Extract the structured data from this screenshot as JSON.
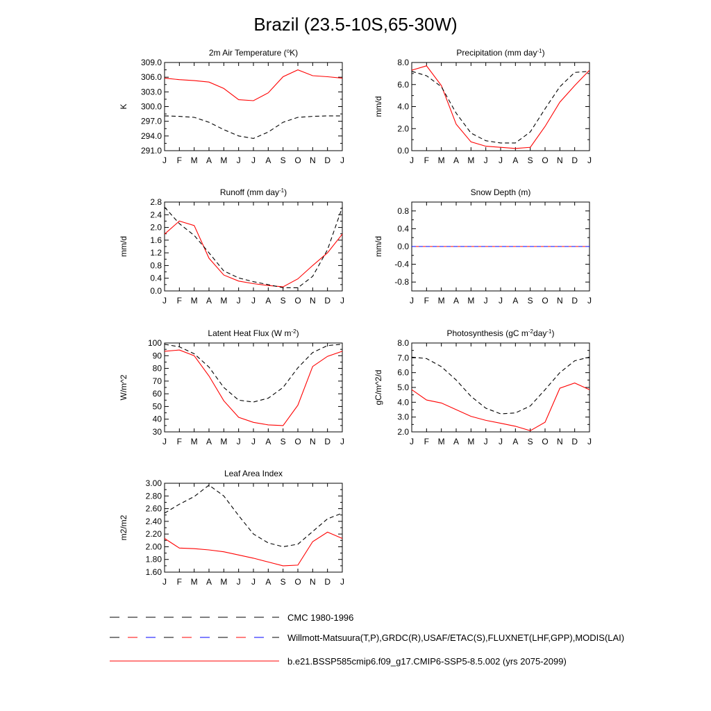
{
  "figure": {
    "title": "Brazil (23.5-10S,65-30W)"
  },
  "legend": [
    {
      "label": "CMC 1980-1996",
      "style": "dashed",
      "colors": [
        "#000000"
      ]
    },
    {
      "label": "Willmott-Matsuura(T,P),GRDC(R),USAF/ETAC(S),FLUXNET(LHF,GPP),MODIS(LAI)",
      "style": "dashed",
      "colors": [
        "#000000",
        "#ff0000",
        "#0000ff"
      ]
    },
    {
      "label": "b.e21.BSSP585cmip6.f09_g17.CMIP6-SSP5-8.5.002 (yrs 2075-2099)",
      "style": "solid",
      "colors": [
        "#ff0000"
      ]
    }
  ],
  "chart_data": [
    {
      "type": "line",
      "title": "2m Air Temperature (°K)",
      "title_parts": [
        {
          "t": "2m Air Temperature ("
        },
        {
          "t": "o",
          "sup": true
        },
        {
          "t": "K)"
        }
      ],
      "xlabel": "",
      "ylabel": "K",
      "x": [
        "J",
        "F",
        "M",
        "A",
        "M",
        "J",
        "J",
        "A",
        "S",
        "O",
        "N",
        "D",
        "J"
      ],
      "ylim": [
        291.0,
        309.0
      ],
      "yticks": [
        291.0,
        294.0,
        297.0,
        300.0,
        303.0,
        306.0,
        309.0
      ],
      "ytick_labels": [
        "291.0",
        "294.0",
        "297.0",
        "300.0",
        "303.0",
        "306.0",
        "309.0"
      ],
      "series": [
        {
          "style": "solid",
          "color": "#ff0000",
          "values": [
            305.8,
            305.5,
            305.3,
            305.0,
            303.7,
            301.4,
            301.2,
            302.8,
            306.1,
            307.5,
            306.3,
            306.1,
            305.8
          ]
        },
        {
          "style": "dashed",
          "color": "#000000",
          "values": [
            298.1,
            298.0,
            297.8,
            296.8,
            295.3,
            294.0,
            293.5,
            294.8,
            296.8,
            297.8,
            298.0,
            298.1,
            298.1
          ]
        }
      ]
    },
    {
      "type": "line",
      "title": "Precipitation (mm day-1)",
      "title_parts": [
        {
          "t": "Precipitation (mm day"
        },
        {
          "t": "-1",
          "sup": true
        },
        {
          "t": ")"
        }
      ],
      "xlabel": "",
      "ylabel": "mm/d",
      "x": [
        "J",
        "F",
        "M",
        "A",
        "M",
        "J",
        "J",
        "A",
        "S",
        "O",
        "N",
        "D",
        "J"
      ],
      "ylim": [
        0.0,
        8.0
      ],
      "yticks": [
        0.0,
        2.0,
        4.0,
        6.0,
        8.0
      ],
      "ytick_labels": [
        "0.0",
        "2.0",
        "4.0",
        "6.0",
        "8.0"
      ],
      "series": [
        {
          "style": "solid",
          "color": "#ff0000",
          "values": [
            7.3,
            7.7,
            5.9,
            2.4,
            0.8,
            0.4,
            0.3,
            0.2,
            0.3,
            2.2,
            4.4,
            5.9,
            7.3
          ]
        },
        {
          "style": "dashed",
          "color": "#000000",
          "values": [
            7.2,
            6.8,
            5.8,
            3.4,
            1.6,
            0.9,
            0.7,
            0.7,
            1.7,
            3.8,
            5.8,
            7.1,
            7.2
          ]
        }
      ]
    },
    {
      "type": "line",
      "title": "Runoff (mm day-1)",
      "title_parts": [
        {
          "t": "Runoff (mm day"
        },
        {
          "t": "-1",
          "sup": true
        },
        {
          "t": ")"
        }
      ],
      "xlabel": "",
      "ylabel": "mm/d",
      "x": [
        "J",
        "F",
        "M",
        "A",
        "M",
        "J",
        "J",
        "A",
        "S",
        "O",
        "N",
        "D",
        "J"
      ],
      "ylim": [
        0.0,
        2.8
      ],
      "yticks": [
        0.0,
        0.4,
        0.8,
        1.2,
        1.6,
        2.0,
        2.4,
        2.8
      ],
      "ytick_labels": [
        "0.0",
        "0.4",
        "0.8",
        "1.2",
        "1.6",
        "2.0",
        "2.4",
        "2.8"
      ],
      "series": [
        {
          "style": "solid",
          "color": "#ff0000",
          "values": [
            1.79,
            2.2,
            2.06,
            1.03,
            0.5,
            0.31,
            0.23,
            0.17,
            0.13,
            0.38,
            0.8,
            1.2,
            1.79
          ]
        },
        {
          "style": "dashed",
          "color": "#000000",
          "values": [
            2.64,
            2.12,
            1.75,
            1.2,
            0.63,
            0.41,
            0.29,
            0.2,
            0.1,
            0.1,
            0.46,
            1.3,
            2.64
          ]
        }
      ]
    },
    {
      "type": "line",
      "title": "Snow Depth (m)",
      "title_parts": [
        {
          "t": "Snow Depth (m)"
        }
      ],
      "xlabel": "",
      "ylabel": "mm/d",
      "x": [
        "J",
        "F",
        "M",
        "A",
        "M",
        "J",
        "J",
        "A",
        "S",
        "O",
        "N",
        "D",
        "J"
      ],
      "ylim": [
        -1.0,
        1.0
      ],
      "yticks": [
        -0.8,
        -0.4,
        0.0,
        0.4,
        0.8
      ],
      "ytick_labels": [
        "-0.8",
        "-0.4",
        "0.0",
        "0.4",
        "0.8"
      ],
      "series": [
        {
          "style": "solid",
          "color": "#ff0000",
          "values": [
            0,
            0,
            0,
            0,
            0,
            0,
            0,
            0,
            0,
            0,
            0,
            0,
            0
          ]
        },
        {
          "style": "dashed",
          "color": "#0000ff",
          "values": [
            0,
            0,
            0,
            0,
            0,
            0,
            0,
            0,
            0,
            0,
            0,
            0,
            0
          ]
        }
      ]
    },
    {
      "type": "line",
      "title": "Latent Heat Flux (W m-2)",
      "title_parts": [
        {
          "t": "Latent Heat Flux (W m"
        },
        {
          "t": "-2",
          "sup": true
        },
        {
          "t": ")"
        }
      ],
      "xlabel": "",
      "ylabel": "W/m^2",
      "x": [
        "J",
        "F",
        "M",
        "A",
        "M",
        "J",
        "J",
        "A",
        "S",
        "O",
        "N",
        "D",
        "J"
      ],
      "ylim": [
        30,
        100
      ],
      "yticks": [
        30,
        40,
        50,
        60,
        70,
        80,
        90,
        100
      ],
      "ytick_labels": [
        "30",
        "40",
        "50",
        "60",
        "70",
        "80",
        "90",
        "100"
      ],
      "series": [
        {
          "style": "solid",
          "color": "#ff0000",
          "values": [
            93.5,
            94.5,
            90.0,
            74.0,
            54.5,
            41.5,
            37.5,
            35.5,
            35.0,
            51.0,
            81.5,
            89.5,
            93.5
          ]
        },
        {
          "style": "dashed",
          "color": "#000000",
          "values": [
            99.0,
            97.0,
            91.5,
            81.0,
            65.0,
            55.0,
            53.5,
            56.5,
            65.0,
            80.5,
            92.5,
            98.0,
            99.0
          ]
        }
      ]
    },
    {
      "type": "line",
      "title": "Photosynthesis (gC m-2day-1)",
      "title_parts": [
        {
          "t": "Photosynthesis (gC m"
        },
        {
          "t": "-2",
          "sup": true
        },
        {
          "t": "day"
        },
        {
          "t": "-1",
          "sup": true
        },
        {
          "t": ")"
        }
      ],
      "xlabel": "",
      "ylabel": "gC/m^2/d",
      "x": [
        "J",
        "F",
        "M",
        "A",
        "M",
        "J",
        "J",
        "A",
        "S",
        "O",
        "N",
        "D",
        "J"
      ],
      "ylim": [
        2.0,
        8.0
      ],
      "yticks": [
        2.0,
        3.0,
        4.0,
        5.0,
        6.0,
        7.0,
        8.0
      ],
      "ytick_labels": [
        "2.0",
        "3.0",
        "4.0",
        "5.0",
        "6.0",
        "7.0",
        "8.0"
      ],
      "series": [
        {
          "style": "solid",
          "color": "#ff0000",
          "values": [
            4.85,
            4.15,
            3.95,
            3.5,
            3.05,
            2.78,
            2.58,
            2.38,
            2.08,
            2.65,
            4.95,
            5.3,
            4.85
          ]
        },
        {
          "style": "dashed",
          "color": "#000000",
          "values": [
            7.05,
            6.95,
            6.4,
            5.5,
            4.4,
            3.6,
            3.22,
            3.28,
            3.75,
            4.85,
            6.0,
            6.8,
            7.05
          ]
        }
      ]
    },
    {
      "type": "line",
      "title": "Leaf Area Index",
      "title_parts": [
        {
          "t": "Leaf Area Index"
        }
      ],
      "xlabel": "",
      "ylabel": "m2/m2",
      "x": [
        "J",
        "F",
        "M",
        "A",
        "M",
        "J",
        "J",
        "A",
        "S",
        "O",
        "N",
        "D",
        "J"
      ],
      "ylim": [
        1.6,
        3.0
      ],
      "yticks": [
        1.6,
        1.8,
        2.0,
        2.2,
        2.4,
        2.6,
        2.8,
        3.0
      ],
      "ytick_labels": [
        "1.60",
        "1.80",
        "2.00",
        "2.20",
        "2.40",
        "2.60",
        "2.80",
        "3.00"
      ],
      "series": [
        {
          "style": "solid",
          "color": "#ff0000",
          "values": [
            2.13,
            1.98,
            1.97,
            1.95,
            1.92,
            1.87,
            1.82,
            1.76,
            1.7,
            1.71,
            2.08,
            2.23,
            2.13
          ]
        },
        {
          "style": "dashed",
          "color": "#000000",
          "values": [
            2.53,
            2.67,
            2.79,
            2.97,
            2.8,
            2.49,
            2.2,
            2.06,
            2.0,
            2.04,
            2.24,
            2.44,
            2.53
          ]
        }
      ]
    }
  ]
}
